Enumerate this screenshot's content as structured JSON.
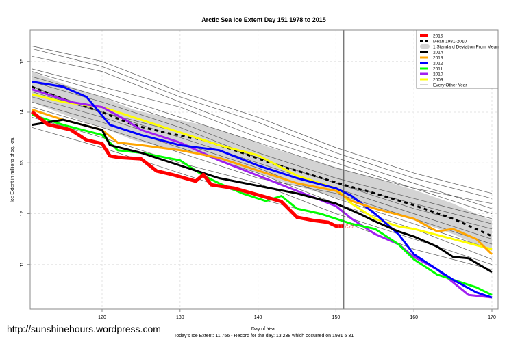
{
  "watermark_url": "http://sunshinehours.wordpress.com",
  "chart_data": {
    "type": "line",
    "title": "Arctic Sea Ice Extent Day 151 1978 to 2015",
    "xlabel": "Day of Year",
    "ylabel": "Ice Extent in millions of sq. km.",
    "subtitle": "Today's Ice Extent: 11.756  - Record for the day: 13.238 which occurred on 1981 5 31",
    "xlim": [
      111,
      171
    ],
    "ylim": [
      10.2,
      15.6
    ],
    "xticks": [
      120,
      130,
      140,
      150,
      160,
      170
    ],
    "yticks": [
      11,
      12,
      13,
      14,
      15
    ],
    "grid": true,
    "legend_position": "top-right",
    "current_day": 151,
    "current_value_label": "11.756",
    "legend": [
      "2015",
      "Mean 1981-2010",
      "1 Standard Deviation From Mean",
      "2014",
      "2013",
      "2012",
      "2011",
      "2010",
      "2009",
      "Every Other Year"
    ],
    "mean": {
      "name": "Mean 1981-2010",
      "color": "#000000",
      "points": [
        [
          111,
          14.5
        ],
        [
          116,
          14.2
        ],
        [
          120,
          14.0
        ],
        [
          124,
          13.75
        ],
        [
          128,
          13.6
        ],
        [
          133,
          13.45
        ],
        [
          137,
          13.25
        ],
        [
          142,
          12.98
        ],
        [
          146,
          12.8
        ],
        [
          151,
          12.57
        ],
        [
          155,
          12.4
        ],
        [
          160,
          12.17
        ],
        [
          165,
          11.9
        ],
        [
          170,
          11.56
        ]
      ]
    },
    "std_band": {
      "name": "1 Standard Deviation From Mean",
      "color": "#d3d3d3",
      "half_width": 0.3
    },
    "series": [
      {
        "name": "2015",
        "color": "#ff0000",
        "width": 5,
        "points": [
          [
            111,
            14.01
          ],
          [
            113,
            13.76
          ],
          [
            116,
            13.65
          ],
          [
            118,
            13.45
          ],
          [
            120,
            13.38
          ],
          [
            121,
            13.14
          ],
          [
            122,
            13.11
          ],
          [
            125,
            13.08
          ],
          [
            127,
            12.84
          ],
          [
            129,
            12.77
          ],
          [
            132,
            12.64
          ],
          [
            133,
            12.77
          ],
          [
            134,
            12.57
          ],
          [
            137,
            12.5
          ],
          [
            140,
            12.37
          ],
          [
            143,
            12.24
          ],
          [
            145,
            11.93
          ],
          [
            147,
            11.87
          ],
          [
            149,
            11.83
          ],
          [
            150,
            11.756
          ],
          [
            151,
            11.756
          ]
        ]
      },
      {
        "name": "2014",
        "color": "#000000",
        "width": 3,
        "points": [
          [
            111,
            13.75
          ],
          [
            115,
            13.85
          ],
          [
            120,
            13.65
          ],
          [
            121,
            13.35
          ],
          [
            125,
            13.2
          ],
          [
            130,
            12.95
          ],
          [
            135,
            12.7
          ],
          [
            140,
            12.55
          ],
          [
            145,
            12.4
          ],
          [
            150,
            12.2
          ],
          [
            153,
            12.0
          ],
          [
            155,
            11.85
          ],
          [
            158,
            11.65
          ],
          [
            160,
            11.55
          ],
          [
            163,
            11.35
          ],
          [
            165,
            11.15
          ],
          [
            167,
            11.12
          ],
          [
            170,
            10.85
          ]
        ]
      },
      {
        "name": "2013",
        "color": "#ffa500",
        "width": 3,
        "points": [
          [
            111,
            14.05
          ],
          [
            115,
            13.85
          ],
          [
            120,
            13.65
          ],
          [
            122,
            13.4
          ],
          [
            125,
            13.35
          ],
          [
            130,
            13.25
          ],
          [
            135,
            13.1
          ],
          [
            140,
            12.85
          ],
          [
            145,
            12.6
          ],
          [
            150,
            12.45
          ],
          [
            152,
            12.25
          ],
          [
            155,
            12.1
          ],
          [
            160,
            11.9
          ],
          [
            163,
            11.65
          ],
          [
            165,
            11.7
          ],
          [
            168,
            11.5
          ],
          [
            170,
            11.2
          ]
        ]
      },
      {
        "name": "2012",
        "color": "#0000ff",
        "width": 3,
        "points": [
          [
            111,
            14.6
          ],
          [
            115,
            14.5
          ],
          [
            118,
            14.3
          ],
          [
            121,
            13.75
          ],
          [
            125,
            13.55
          ],
          [
            130,
            13.35
          ],
          [
            135,
            13.25
          ],
          [
            140,
            12.95
          ],
          [
            145,
            12.7
          ],
          [
            150,
            12.5
          ],
          [
            152,
            12.35
          ],
          [
            155,
            12.0
          ],
          [
            158,
            11.6
          ],
          [
            160,
            11.2
          ],
          [
            163,
            10.9
          ],
          [
            165,
            10.7
          ],
          [
            168,
            10.45
          ],
          [
            170,
            10.35
          ]
        ]
      },
      {
        "name": "2011",
        "color": "#00ff00",
        "width": 3,
        "points": [
          [
            111,
            13.95
          ],
          [
            115,
            13.75
          ],
          [
            120,
            13.55
          ],
          [
            122,
            13.25
          ],
          [
            125,
            13.2
          ],
          [
            130,
            13.05
          ],
          [
            133,
            12.75
          ],
          [
            135,
            12.6
          ],
          [
            138,
            12.4
          ],
          [
            141,
            12.25
          ],
          [
            143,
            12.35
          ],
          [
            145,
            12.1
          ],
          [
            148,
            12.0
          ],
          [
            150,
            11.9
          ],
          [
            152,
            11.8
          ],
          [
            155,
            11.7
          ],
          [
            158,
            11.4
          ],
          [
            160,
            11.1
          ],
          [
            163,
            10.8
          ],
          [
            165,
            10.7
          ],
          [
            168,
            10.55
          ],
          [
            170,
            10.4
          ]
        ]
      },
      {
        "name": "2010",
        "color": "#a020f0",
        "width": 3,
        "points": [
          [
            111,
            14.45
          ],
          [
            113,
            14.35
          ],
          [
            116,
            14.2
          ],
          [
            120,
            14.1
          ],
          [
            123,
            13.85
          ],
          [
            125,
            13.65
          ],
          [
            130,
            13.4
          ],
          [
            135,
            13.05
          ],
          [
            140,
            12.75
          ],
          [
            145,
            12.45
          ],
          [
            150,
            12.15
          ],
          [
            152,
            11.9
          ],
          [
            155,
            11.6
          ],
          [
            158,
            11.4
          ],
          [
            160,
            11.15
          ],
          [
            163,
            10.9
          ],
          [
            165,
            10.65
          ],
          [
            167,
            10.4
          ],
          [
            170,
            10.35
          ]
        ]
      },
      {
        "name": "2009",
        "color": "#ffff00",
        "width": 3,
        "points": [
          [
            111,
            14.35
          ],
          [
            115,
            14.2
          ],
          [
            120,
            14.1
          ],
          [
            125,
            13.85
          ],
          [
            130,
            13.6
          ],
          [
            135,
            13.35
          ],
          [
            140,
            13.15
          ],
          [
            145,
            12.75
          ],
          [
            150,
            12.5
          ],
          [
            152,
            12.2
          ],
          [
            155,
            11.9
          ],
          [
            158,
            11.75
          ],
          [
            160,
            11.7
          ],
          [
            165,
            11.5
          ],
          [
            170,
            11.3
          ]
        ]
      }
    ],
    "other_years": {
      "name": "Every Other Year",
      "color": "#555555",
      "lines": [
        [
          [
            111,
            15.3
          ],
          [
            120,
            15.0
          ],
          [
            130,
            14.4
          ],
          [
            140,
            13.9
          ],
          [
            150,
            13.3
          ],
          [
            160,
            12.8
          ],
          [
            170,
            12.4
          ]
        ],
        [
          [
            111,
            15.25
          ],
          [
            120,
            14.9
          ],
          [
            130,
            14.3
          ],
          [
            140,
            13.8
          ],
          [
            150,
            13.2
          ],
          [
            160,
            12.7
          ],
          [
            170,
            12.3
          ]
        ],
        [
          [
            111,
            15.1
          ],
          [
            120,
            14.8
          ],
          [
            130,
            14.2
          ],
          [
            140,
            13.6
          ],
          [
            150,
            13.1
          ],
          [
            160,
            12.6
          ],
          [
            170,
            12.1
          ]
        ],
        [
          [
            111,
            14.85
          ],
          [
            120,
            14.5
          ],
          [
            130,
            14.1
          ],
          [
            140,
            13.5
          ],
          [
            150,
            13.0
          ],
          [
            160,
            12.5
          ],
          [
            170,
            12.2
          ]
        ],
        [
          [
            111,
            14.8
          ],
          [
            120,
            14.4
          ],
          [
            130,
            13.9
          ],
          [
            140,
            13.4
          ],
          [
            150,
            12.9
          ],
          [
            160,
            12.5
          ],
          [
            170,
            12.0
          ]
        ],
        [
          [
            111,
            14.7
          ],
          [
            120,
            14.3
          ],
          [
            130,
            13.8
          ],
          [
            140,
            13.2
          ],
          [
            150,
            12.7
          ],
          [
            160,
            12.3
          ],
          [
            170,
            11.9
          ]
        ],
        [
          [
            111,
            14.6
          ],
          [
            120,
            14.2
          ],
          [
            130,
            13.7
          ],
          [
            140,
            13.1
          ],
          [
            150,
            12.6
          ],
          [
            160,
            12.1
          ],
          [
            170,
            11.7
          ]
        ],
        [
          [
            111,
            14.5
          ],
          [
            120,
            14.0
          ],
          [
            130,
            13.5
          ],
          [
            140,
            13.0
          ],
          [
            150,
            12.5
          ],
          [
            160,
            12.0
          ],
          [
            170,
            11.5
          ]
        ],
        [
          [
            111,
            14.3
          ],
          [
            120,
            13.9
          ],
          [
            130,
            13.4
          ],
          [
            140,
            12.9
          ],
          [
            150,
            12.3
          ],
          [
            160,
            11.8
          ],
          [
            170,
            11.3
          ]
        ],
        [
          [
            111,
            14.2
          ],
          [
            120,
            13.8
          ],
          [
            130,
            13.3
          ],
          [
            140,
            12.8
          ],
          [
            150,
            12.2
          ],
          [
            160,
            11.7
          ],
          [
            170,
            11.1
          ]
        ],
        [
          [
            111,
            13.9
          ],
          [
            120,
            13.5
          ],
          [
            130,
            13.0
          ],
          [
            140,
            12.6
          ],
          [
            150,
            12.0
          ],
          [
            160,
            11.5
          ],
          [
            170,
            11.0
          ]
        ],
        [
          [
            111,
            13.7
          ],
          [
            120,
            13.3
          ],
          [
            130,
            12.8
          ],
          [
            140,
            12.3
          ],
          [
            150,
            11.9
          ],
          [
            160,
            11.3
          ],
          [
            170,
            10.9
          ]
        ],
        [
          [
            111,
            14.4
          ],
          [
            120,
            14.0
          ],
          [
            130,
            13.6
          ],
          [
            140,
            13.1
          ],
          [
            150,
            12.6
          ],
          [
            160,
            12.2
          ],
          [
            170,
            11.8
          ]
        ],
        [
          [
            111,
            14.1
          ],
          [
            120,
            13.7
          ],
          [
            130,
            13.2
          ],
          [
            140,
            12.7
          ],
          [
            150,
            12.4
          ],
          [
            160,
            11.9
          ],
          [
            170,
            11.4
          ]
        ]
      ]
    }
  }
}
